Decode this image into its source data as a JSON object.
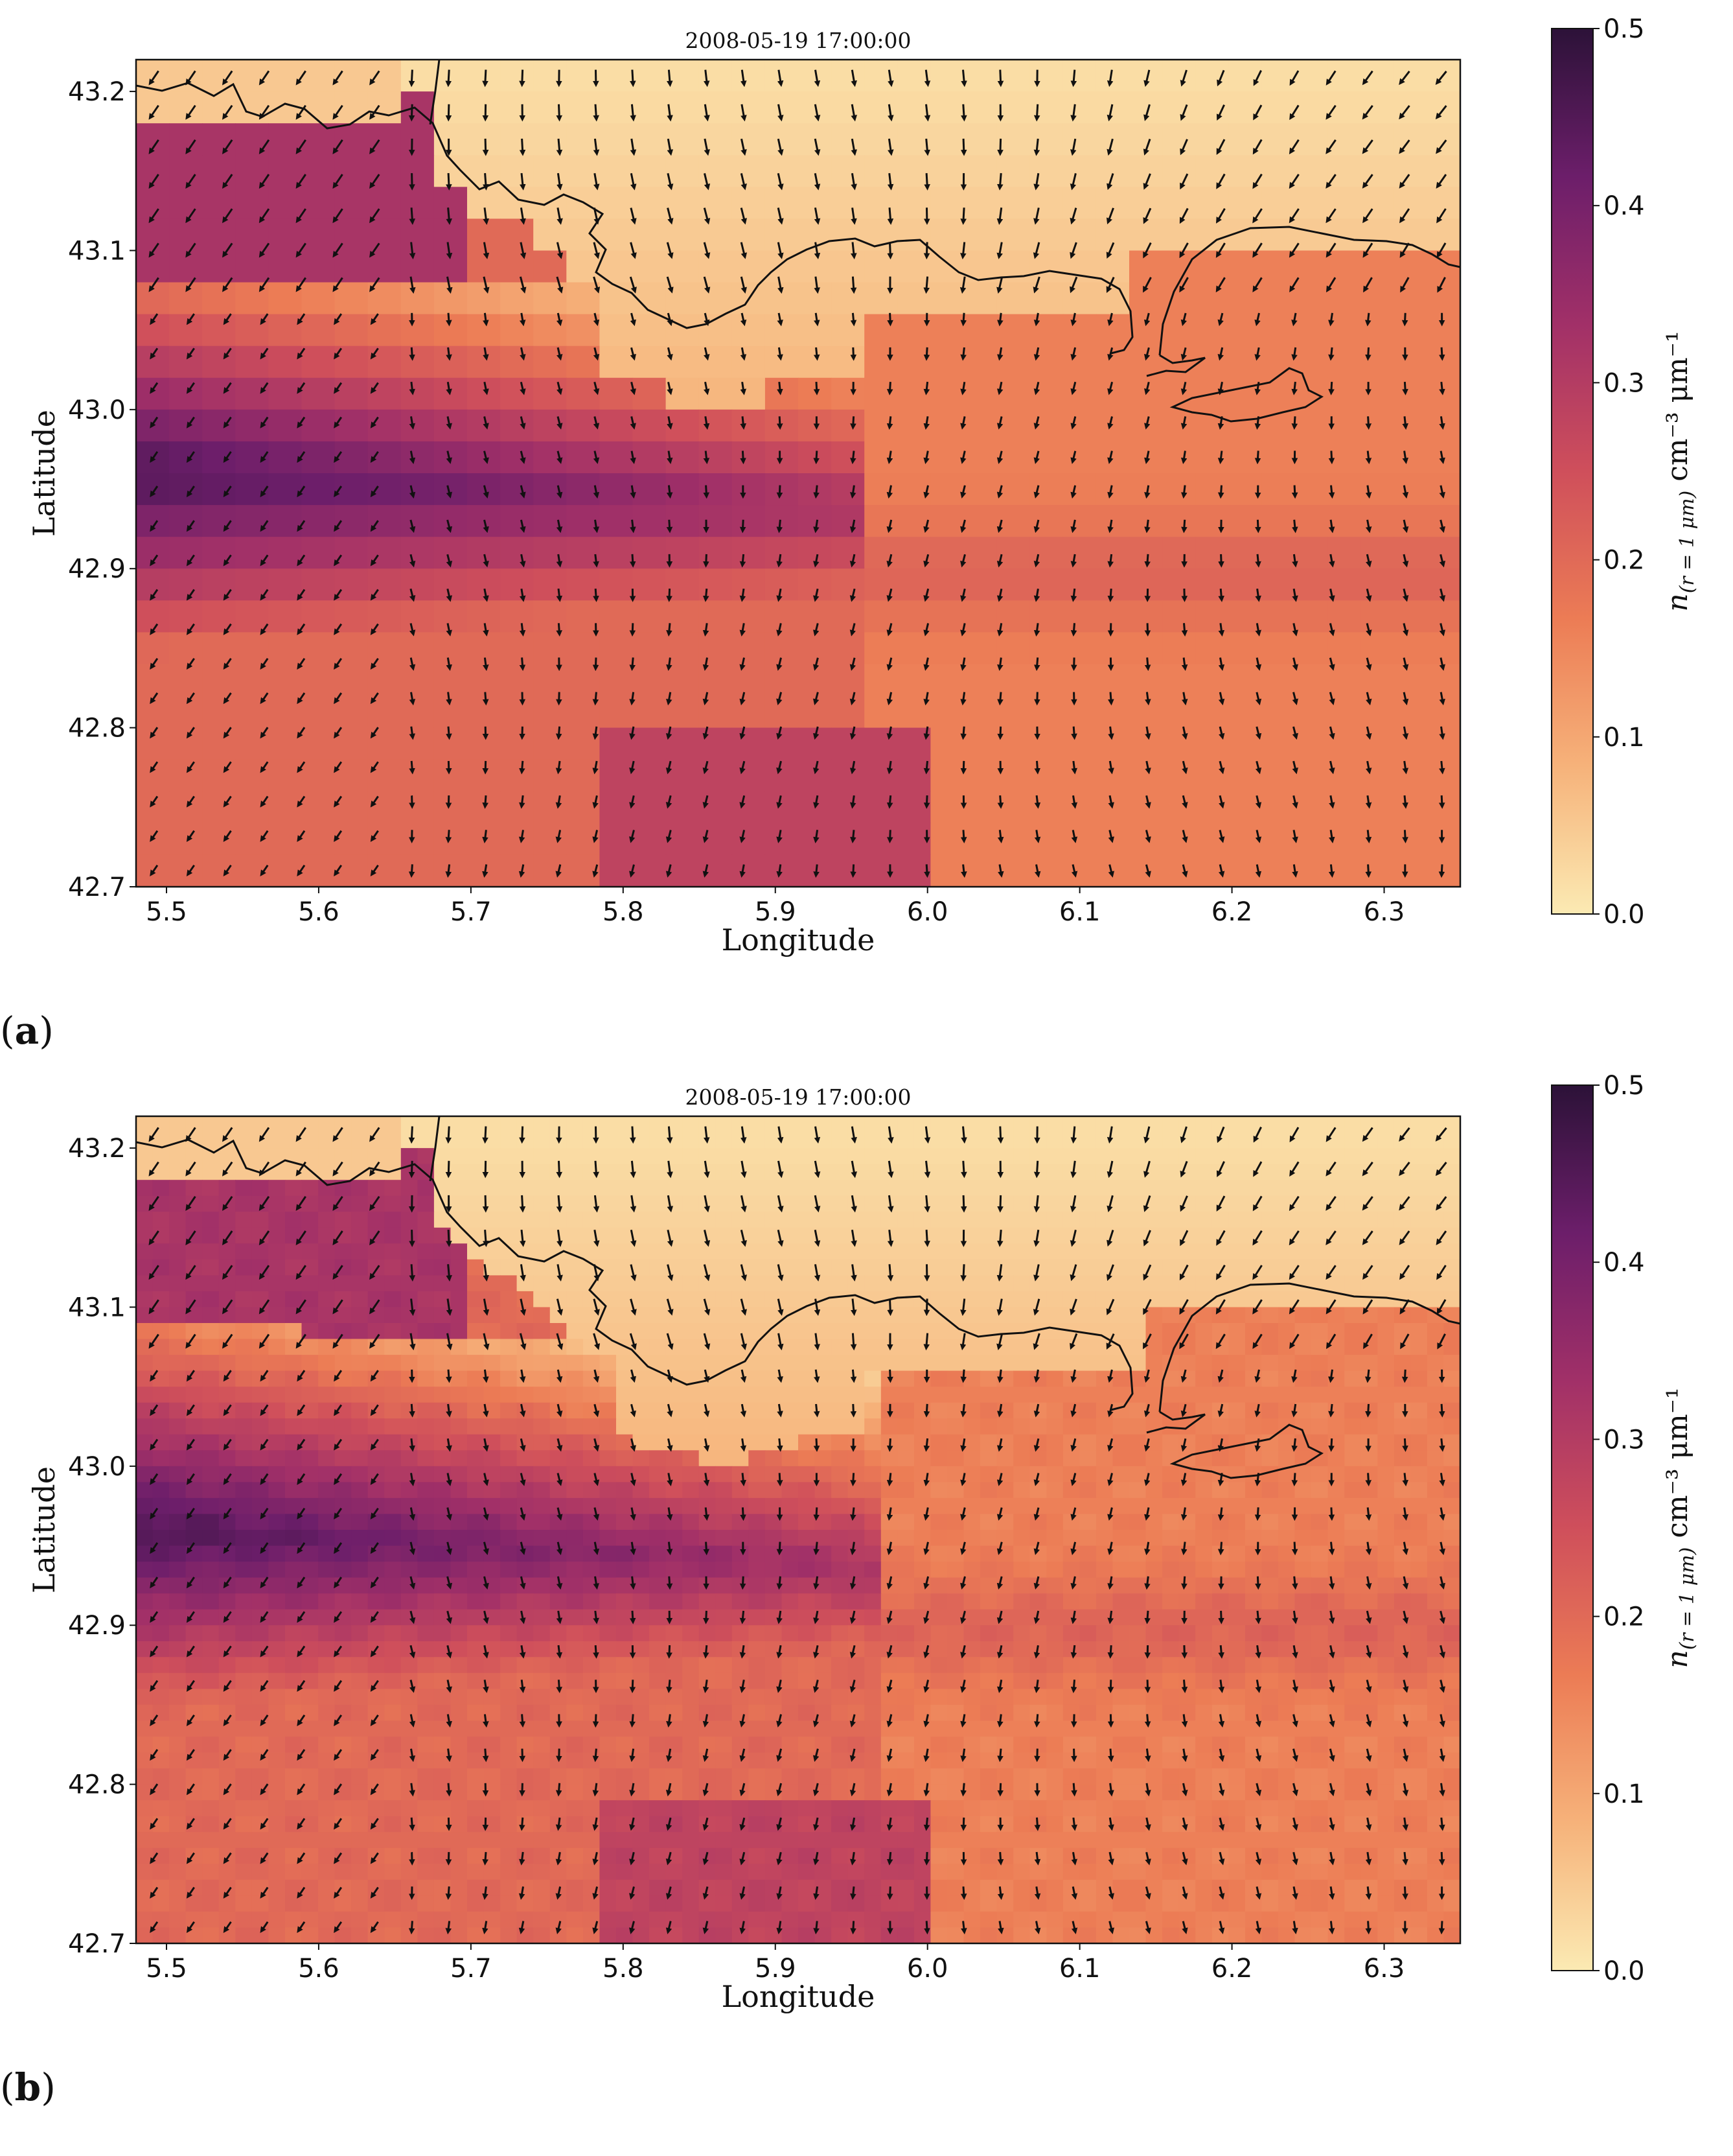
{
  "chart_data": [
    {
      "type": "heatmap",
      "panel_label": {
        "open": "(",
        "letter": "a",
        "close": ")"
      },
      "title": "2008-05-19 17:00:00",
      "xlabel": "Longitude",
      "ylabel": "Latitude",
      "xlim": [
        5.48,
        6.35
      ],
      "ylim": [
        42.7,
        43.22
      ],
      "xticks": [
        "5.5",
        "5.6",
        "5.7",
        "5.8",
        "5.9",
        "6.0",
        "6.1",
        "6.2",
        "6.3"
      ],
      "yticks": [
        "42.7",
        "42.8",
        "42.9",
        "43.0",
        "43.1",
        "43.2"
      ],
      "colorbar": {
        "label_main": "n",
        "label_sub": "(r = 1 μm)",
        "label_units": " cm⁻³ μm⁻¹",
        "range": [
          0.0,
          0.5
        ],
        "ticks": [
          "0.0",
          "0.1",
          "0.2",
          "0.3",
          "0.4",
          "0.5"
        ],
        "colormap": "magma_r",
        "colors": [
          "#fbeab3",
          "#f6b27a",
          "#ec7c55",
          "#cf4f5b",
          "#a13068",
          "#6c1e6a",
          "#2c1238"
        ]
      },
      "resolution": "coarse grid",
      "overlays": [
        "wind vectors",
        "coastline"
      ],
      "notes": "pollution plume over the sea with maximum near 42.95 N; clean air over land"
    },
    {
      "type": "heatmap",
      "panel_label": {
        "open": "(",
        "letter": "b",
        "close": ")"
      },
      "title": "2008-05-19 17:00:00",
      "xlabel": "Longitude",
      "ylabel": "Latitude",
      "xlim": [
        5.48,
        6.35
      ],
      "ylim": [
        42.7,
        43.22
      ],
      "xticks": [
        "5.5",
        "5.6",
        "5.7",
        "5.8",
        "5.9",
        "6.0",
        "6.1",
        "6.2",
        "6.3"
      ],
      "yticks": [
        "42.7",
        "42.8",
        "42.9",
        "43.0",
        "43.1",
        "43.2"
      ],
      "colorbar": {
        "label_main": "n",
        "label_sub": "(r = 1 μm)",
        "label_units": " cm⁻³ μm⁻¹",
        "range": [
          0.0,
          0.5
        ],
        "ticks": [
          "0.0",
          "0.1",
          "0.2",
          "0.3",
          "0.4",
          "0.5"
        ],
        "colormap": "magma_r",
        "colors": [
          "#fbeab3",
          "#f6b27a",
          "#ec7c55",
          "#cf4f5b",
          "#a13068",
          "#6c1e6a",
          "#2c1238"
        ]
      },
      "resolution": "fine grid",
      "overlays": [
        "wind vectors",
        "coastline"
      ],
      "notes": "finer-resolution plume bounded near 6.0 E"
    }
  ]
}
